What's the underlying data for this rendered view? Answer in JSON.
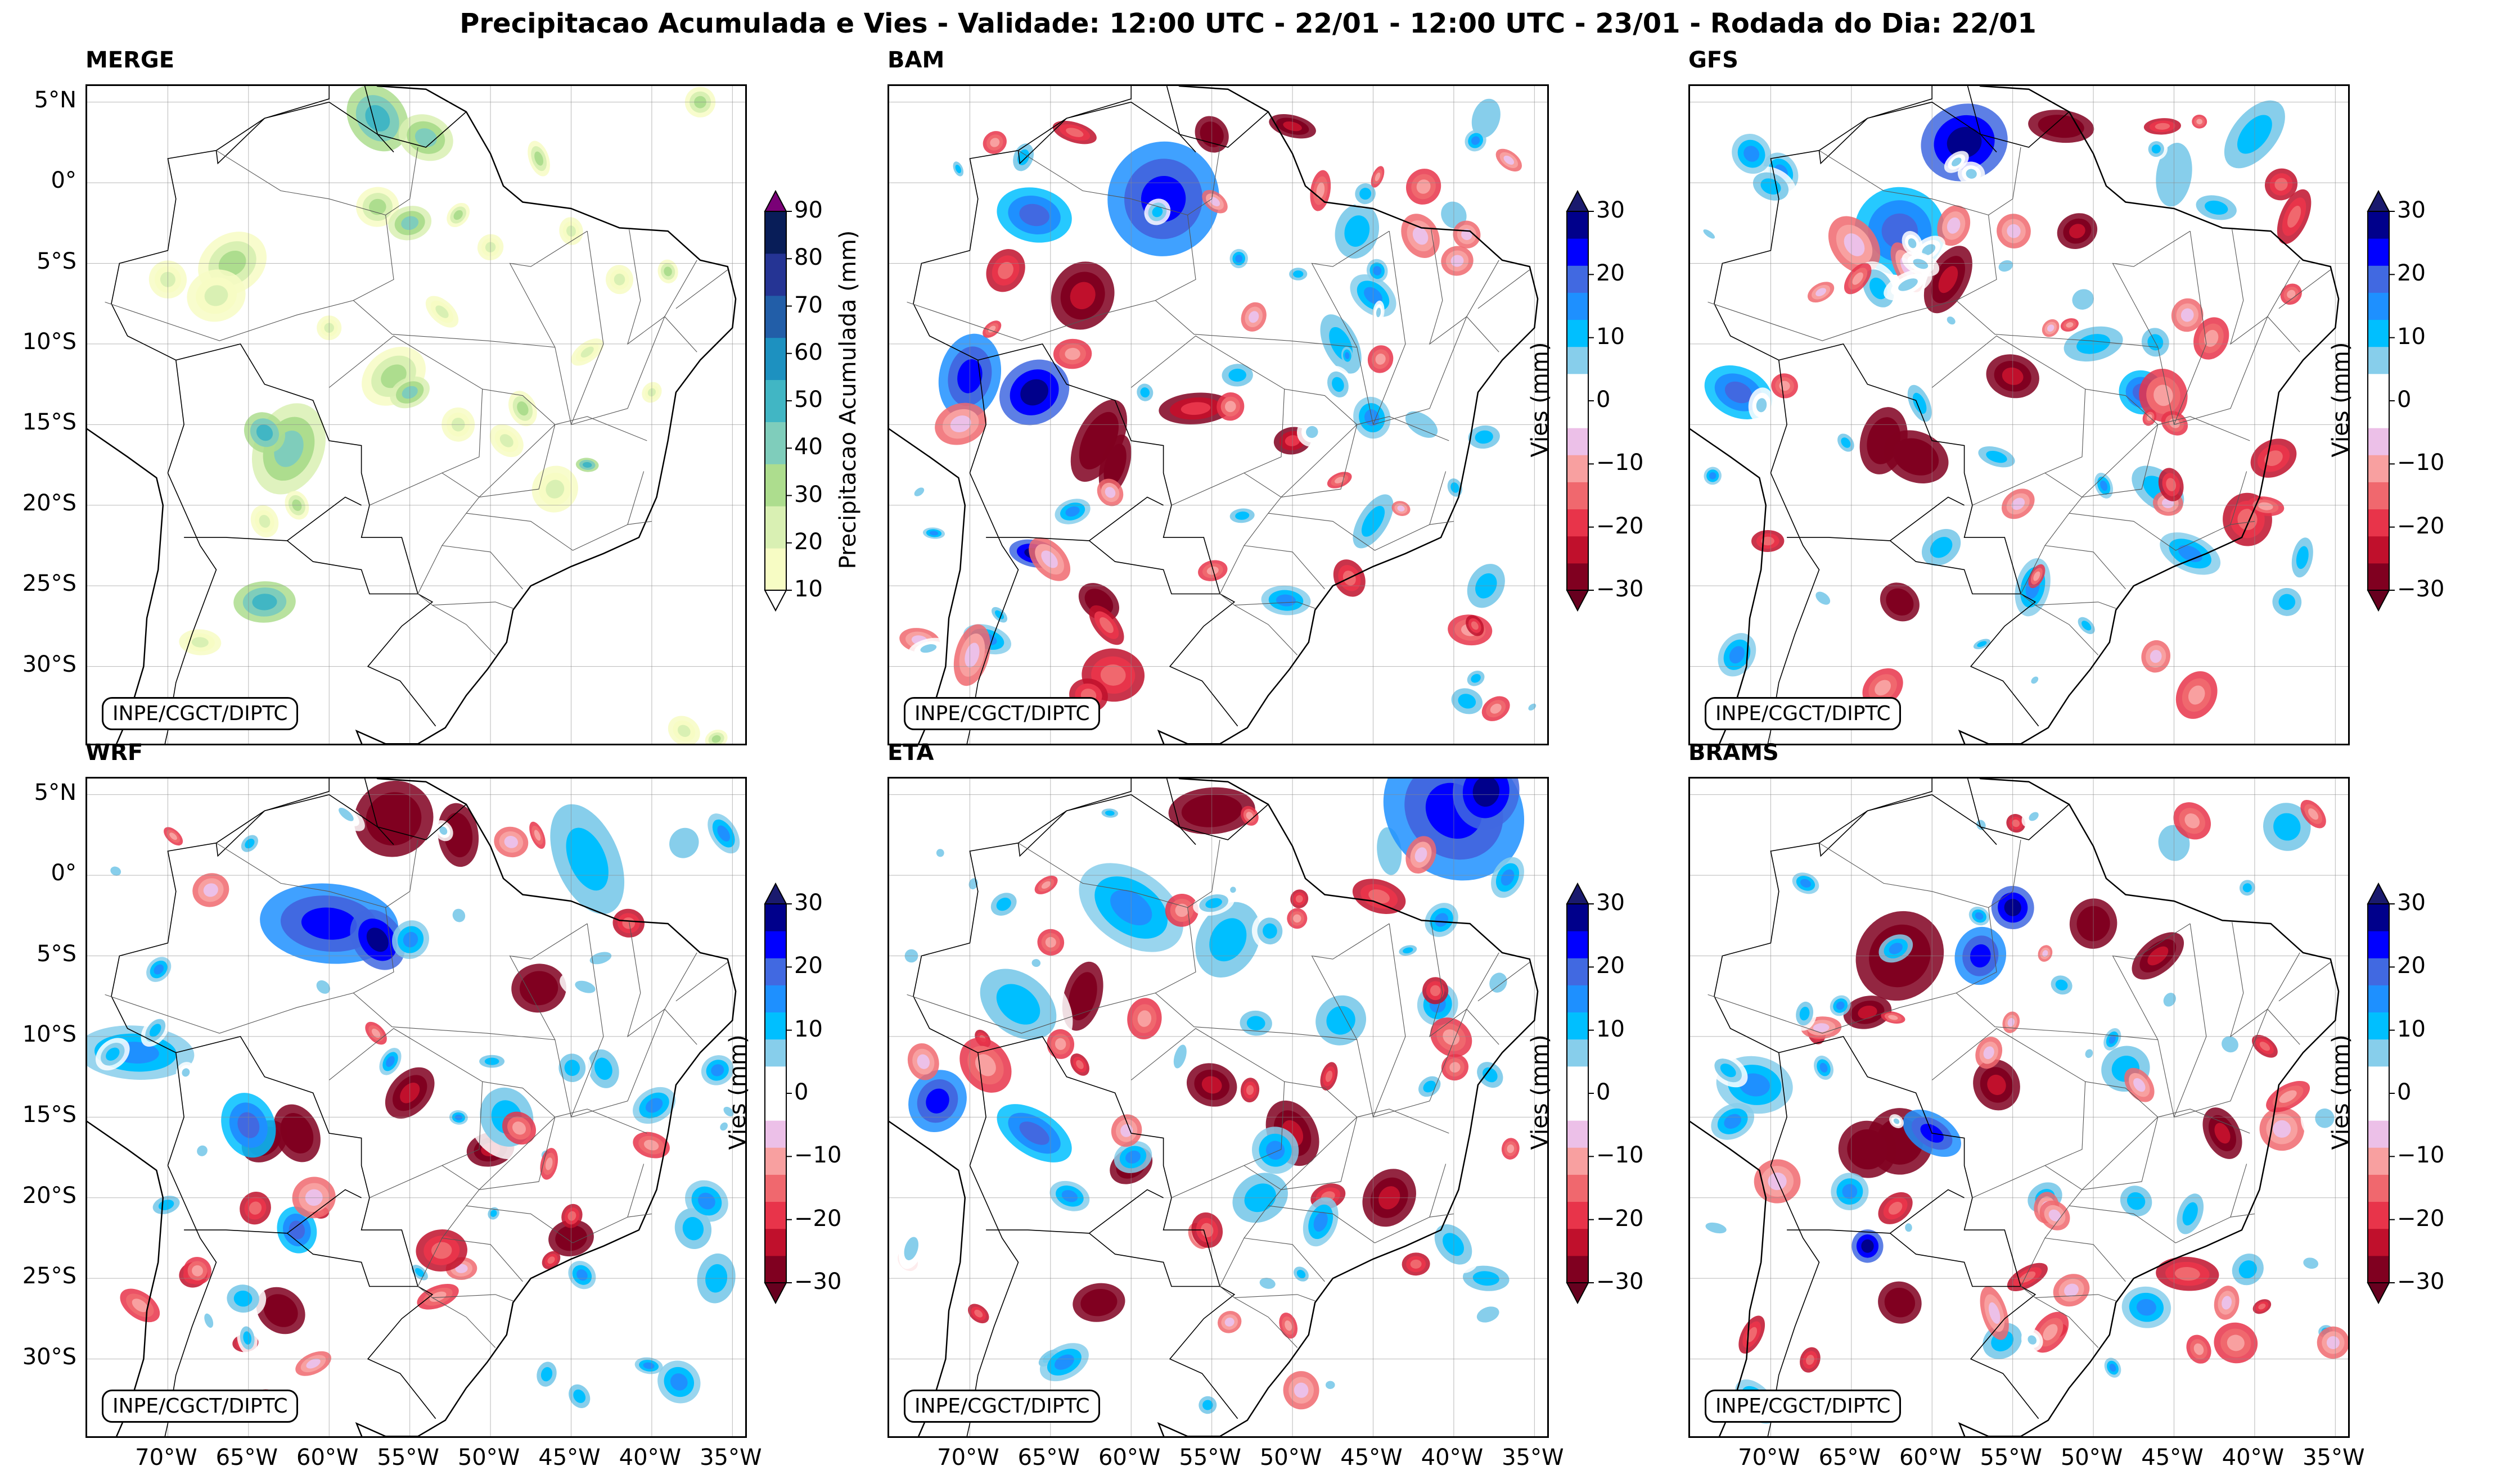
{
  "title": "Precipitacao Acumulada e Vies - Validade: 12:00 UTC - 22/01 - 12:00 UTC - 23/01 - Rodada do Dia: 22/01",
  "credit": "INPE/CGCT/DIPTC",
  "lat_labels": [
    "5°N",
    "0°",
    "5°S",
    "10°S",
    "15°S",
    "20°S",
    "25°S",
    "30°S"
  ],
  "lon_labels": [
    "70°W",
    "65°W",
    "60°W",
    "55°W",
    "50°W",
    "45°W",
    "40°W",
    "35°W"
  ],
  "panels": [
    {
      "name": "MERGE",
      "variable": "precip"
    },
    {
      "name": "BAM",
      "variable": "bias"
    },
    {
      "name": "GFS",
      "variable": "bias"
    },
    {
      "name": "WRF",
      "variable": "bias"
    },
    {
      "name": "ETA",
      "variable": "bias"
    },
    {
      "name": "BRAMS",
      "variable": "bias"
    }
  ],
  "precip_colorbar": {
    "label": "Precipitacao Acumulada (mm)",
    "ticks": [
      "10",
      "20",
      "30",
      "40",
      "50",
      "60",
      "70",
      "80",
      "90"
    ],
    "colors": [
      "#f7fcc4",
      "#d9f0b3",
      "#addd8e",
      "#7fcdbb",
      "#41b6c4",
      "#1d91c0",
      "#225ea8",
      "#253494",
      "#081d58"
    ],
    "under_color": "#ffffff",
    "over_color": "#7a0177"
  },
  "bias_colorbar": {
    "label": "Vies (mm)",
    "ticks": [
      "−30",
      "−20",
      "−10",
      "0",
      "10",
      "20",
      "30"
    ],
    "colors": [
      "#800020",
      "#c0102c",
      "#e8344a",
      "#f0686e",
      "#f8a0a0",
      "#ecc0e8",
      "#ffffff",
      "#ffffff",
      "#87ceeb",
      "#00bfff",
      "#1e90ff",
      "#4169e1",
      "#0000ff",
      "#00008b"
    ],
    "under_color": "#67001f",
    "over_color": "#1a1a6e"
  }
}
